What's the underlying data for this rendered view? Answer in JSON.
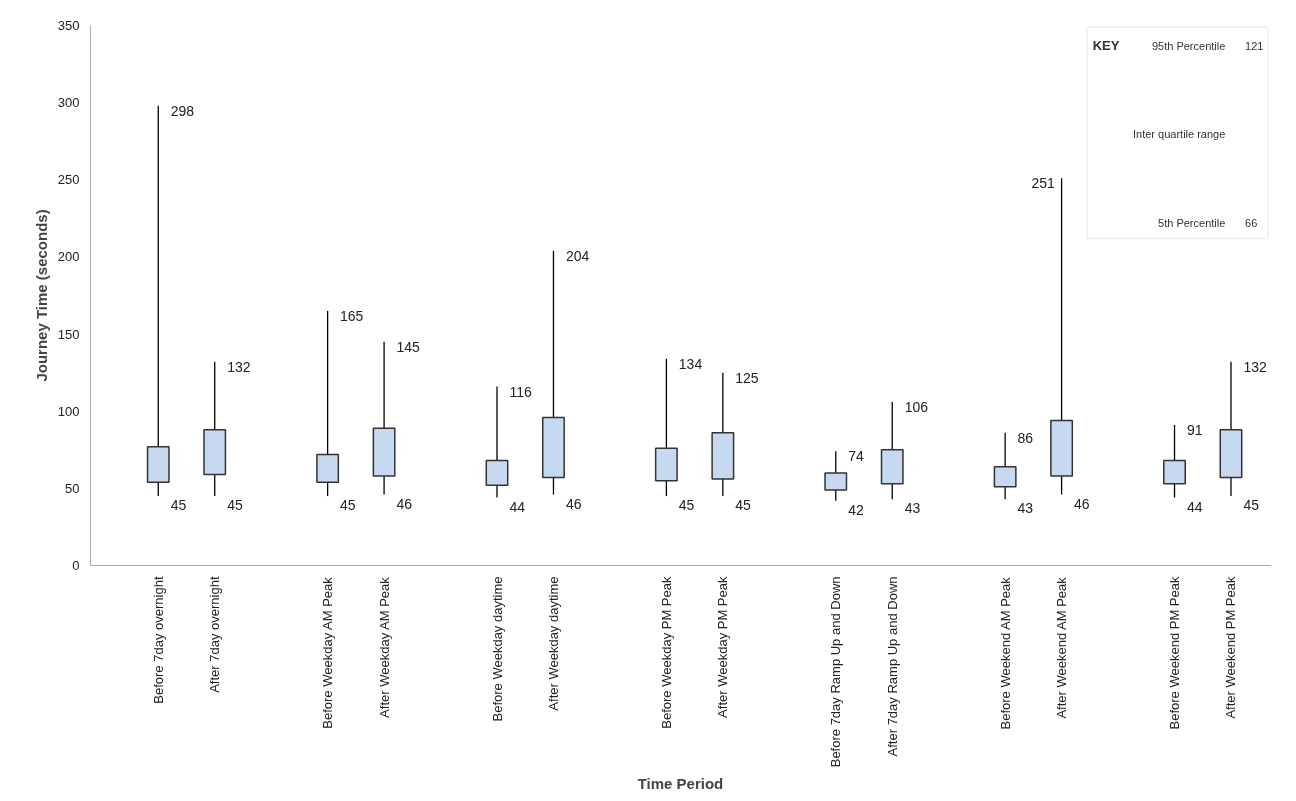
{
  "chart_data": {
    "type": "box",
    "xlabel": "Time Period",
    "ylabel": "Journey Time (seconds)",
    "categories": [
      "Before 7day overnight",
      "After 7day overnight",
      null,
      "Before Weekday AM Peak",
      "After Weekday AM Peak",
      null,
      "Before Weekday daytime",
      "After Weekday daytime",
      null,
      "Before Weekday PM Peak",
      "After Weekday PM Peak",
      null,
      "Before 7day Ramp Up and Down",
      "After 7day Ramp Up and Down",
      null,
      "Before Weekend AM Peak",
      "After Weekend AM Peak",
      null,
      "Before Weekend PM Peak",
      "After Weekend PM Peak"
    ],
    "boxes": [
      {
        "low": 45,
        "q1": 54,
        "q3": 77,
        "high": 298
      },
      {
        "low": 45,
        "q1": 59,
        "q3": 88,
        "high": 132
      },
      null,
      {
        "low": 45,
        "q1": 54,
        "q3": 72,
        "high": 165
      },
      {
        "low": 46,
        "q1": 58,
        "q3": 89,
        "high": 145
      },
      null,
      {
        "low": 44,
        "q1": 52,
        "q3": 68,
        "high": 116
      },
      {
        "low": 46,
        "q1": 57,
        "q3": 96,
        "high": 204
      },
      null,
      {
        "low": 45,
        "q1": 55,
        "q3": 76,
        "high": 134
      },
      {
        "low": 45,
        "q1": 56,
        "q3": 86,
        "high": 125
      },
      null,
      {
        "low": 42,
        "q1": 49,
        "q3": 60,
        "high": 74
      },
      {
        "low": 43,
        "q1": 53,
        "q3": 75,
        "high": 106
      },
      null,
      {
        "low": 43,
        "q1": 51,
        "q3": 64,
        "high": 86
      },
      {
        "low": 46,
        "q1": 58,
        "q3": 94,
        "high": 251
      },
      null,
      {
        "low": 44,
        "q1": 53,
        "q3": 68,
        "high": 91
      },
      {
        "low": 45,
        "q1": 57,
        "q3": 88,
        "high": 132
      }
    ],
    "color": "#c6d9f0",
    "ylim": [
      0,
      350
    ],
    "yticks": [
      0,
      50,
      100,
      150,
      200,
      250,
      300,
      350
    ],
    "grid": false,
    "annotations": [
      "KEY",
      "95th Percentile",
      "121",
      "Inter quartile range",
      "5th Percentile",
      "66",
      {
        "text": "298",
        "x": "Before 7day overnight",
        "y": 298
      },
      {
        "text": "45",
        "x": "Before 7day overnight",
        "y": 45
      },
      {
        "text": "132",
        "x": "After 7day overnight",
        "y": 132
      },
      {
        "text": "45",
        "x": "After 7day overnight",
        "y": 45
      },
      {
        "text": "165",
        "x": "Before Weekday AM Peak",
        "y": 165
      },
      {
        "text": "45",
        "x": "Before Weekday AM Peak",
        "y": 45
      },
      {
        "text": "145",
        "x": "After Weekday AM Peak",
        "y": 145
      },
      {
        "text": "46",
        "x": "After Weekday AM Peak",
        "y": 46
      },
      {
        "text": "116",
        "x": "Before Weekday daytime",
        "y": 116
      },
      {
        "text": "44",
        "x": "Before Weekday daytime",
        "y": 44
      },
      {
        "text": "204",
        "x": "After Weekday daytime",
        "y": 204
      },
      {
        "text": "46",
        "x": "After Weekday daytime",
        "y": 46
      },
      {
        "text": "134",
        "x": "Before Weekday PM Peak",
        "y": 134
      },
      {
        "text": "45",
        "x": "Before Weekday PM Peak",
        "y": 45
      },
      {
        "text": "125",
        "x": "After Weekday PM Peak",
        "y": 125
      },
      {
        "text": "45",
        "x": "After Weekday PM Peak",
        "y": 45
      },
      {
        "text": "74",
        "x": "Before 7day Ramp Up and Down",
        "y": 74
      },
      {
        "text": "42",
        "x": "Before 7day Ramp Up and Down",
        "y": 42
      },
      {
        "text": "106",
        "x": "After 7day Ramp Up and Down",
        "y": 106
      },
      {
        "text": "43",
        "x": "After 7day Ramp Up and Down",
        "y": 43
      },
      {
        "text": "86",
        "x": "Before Weekend AM Peak",
        "y": 86
      },
      {
        "text": "43",
        "x": "Before Weekend AM Peak",
        "y": 43
      },
      {
        "text": "251",
        "x": "After Weekend AM Peak",
        "y": 251
      },
      {
        "text": "46",
        "x": "After Weekend AM Peak",
        "y": 46
      },
      {
        "text": "91",
        "x": "Before Weekend PM Peak",
        "y": 91
      },
      {
        "text": "44",
        "x": "Before Weekend PM Peak",
        "y": 44
      },
      {
        "text": "132",
        "x": "After Weekend PM Peak",
        "y": 132
      },
      {
        "text": "45",
        "x": "After Weekend PM Peak",
        "y": 45
      }
    ]
  }
}
